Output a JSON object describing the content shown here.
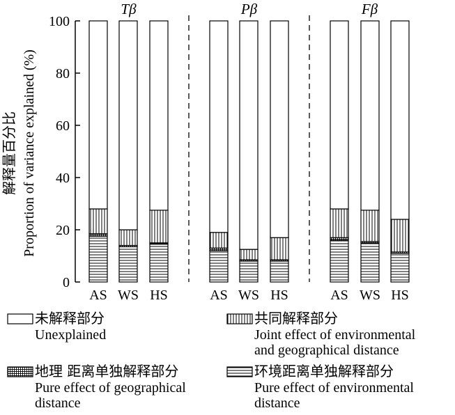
{
  "chart_data": {
    "type": "bar",
    "stacked": true,
    "ylabel_zh": "解释量百分比",
    "ylabel_en": "Proportion of variance explained (%)",
    "ylim": [
      0,
      100
    ],
    "yticks": [
      0,
      20,
      40,
      60,
      80,
      100
    ],
    "groups": [
      {
        "title": "Tβ",
        "categories": [
          "AS",
          "WS",
          "HS"
        ]
      },
      {
        "title": "Pβ",
        "categories": [
          "AS",
          "WS",
          "HS"
        ]
      },
      {
        "title": "Fβ",
        "categories": [
          "AS",
          "WS",
          "HS"
        ]
      }
    ],
    "series": [
      {
        "key": "environmental",
        "name_zh": "环境距离单独解释部分",
        "name_en": "Pure effect of environmental distance",
        "pattern": "horizontal",
        "values": [
          17.5,
          13.5,
          14.5,
          12,
          8,
          8,
          16,
          15,
          11
        ]
      },
      {
        "key": "geographical",
        "name_zh": "地理 距离单独解释部分",
        "name_en": "Pure effect of geographical distance",
        "pattern": "grid",
        "values": [
          1,
          0.5,
          0.5,
          1,
          0.5,
          0.5,
          1,
          0.5,
          0.5
        ]
      },
      {
        "key": "joint",
        "name_zh": "共同解释部分",
        "name_en": "Joint effect of environmental and geographical distance",
        "pattern": "vertical",
        "values": [
          9.5,
          6,
          12.5,
          6,
          4,
          8.5,
          11,
          12,
          12.5
        ]
      },
      {
        "key": "unexplained",
        "name_zh": "未解释部分",
        "name_en": "Unexplained",
        "pattern": "blank",
        "values": [
          72,
          80,
          72.5,
          81,
          87.5,
          83,
          72,
          72.5,
          76
        ]
      }
    ],
    "legend": [
      {
        "zh": "未解释部分",
        "en_lines": [
          "Unexplained"
        ],
        "pattern": "blank"
      },
      {
        "zh": "共同解释部分",
        "en_lines": [
          "Joint effect of environmental",
          "and geographical distance"
        ],
        "pattern": "vertical"
      },
      {
        "zh": "地理 距离单独解释部分",
        "en_lines": [
          "Pure effect of geographical",
          "distance"
        ],
        "pattern": "grid"
      },
      {
        "zh": "环境距离单独解释部分",
        "en_lines": [
          "Pure effect of environmental",
          "distance"
        ],
        "pattern": "horizontal"
      }
    ]
  }
}
